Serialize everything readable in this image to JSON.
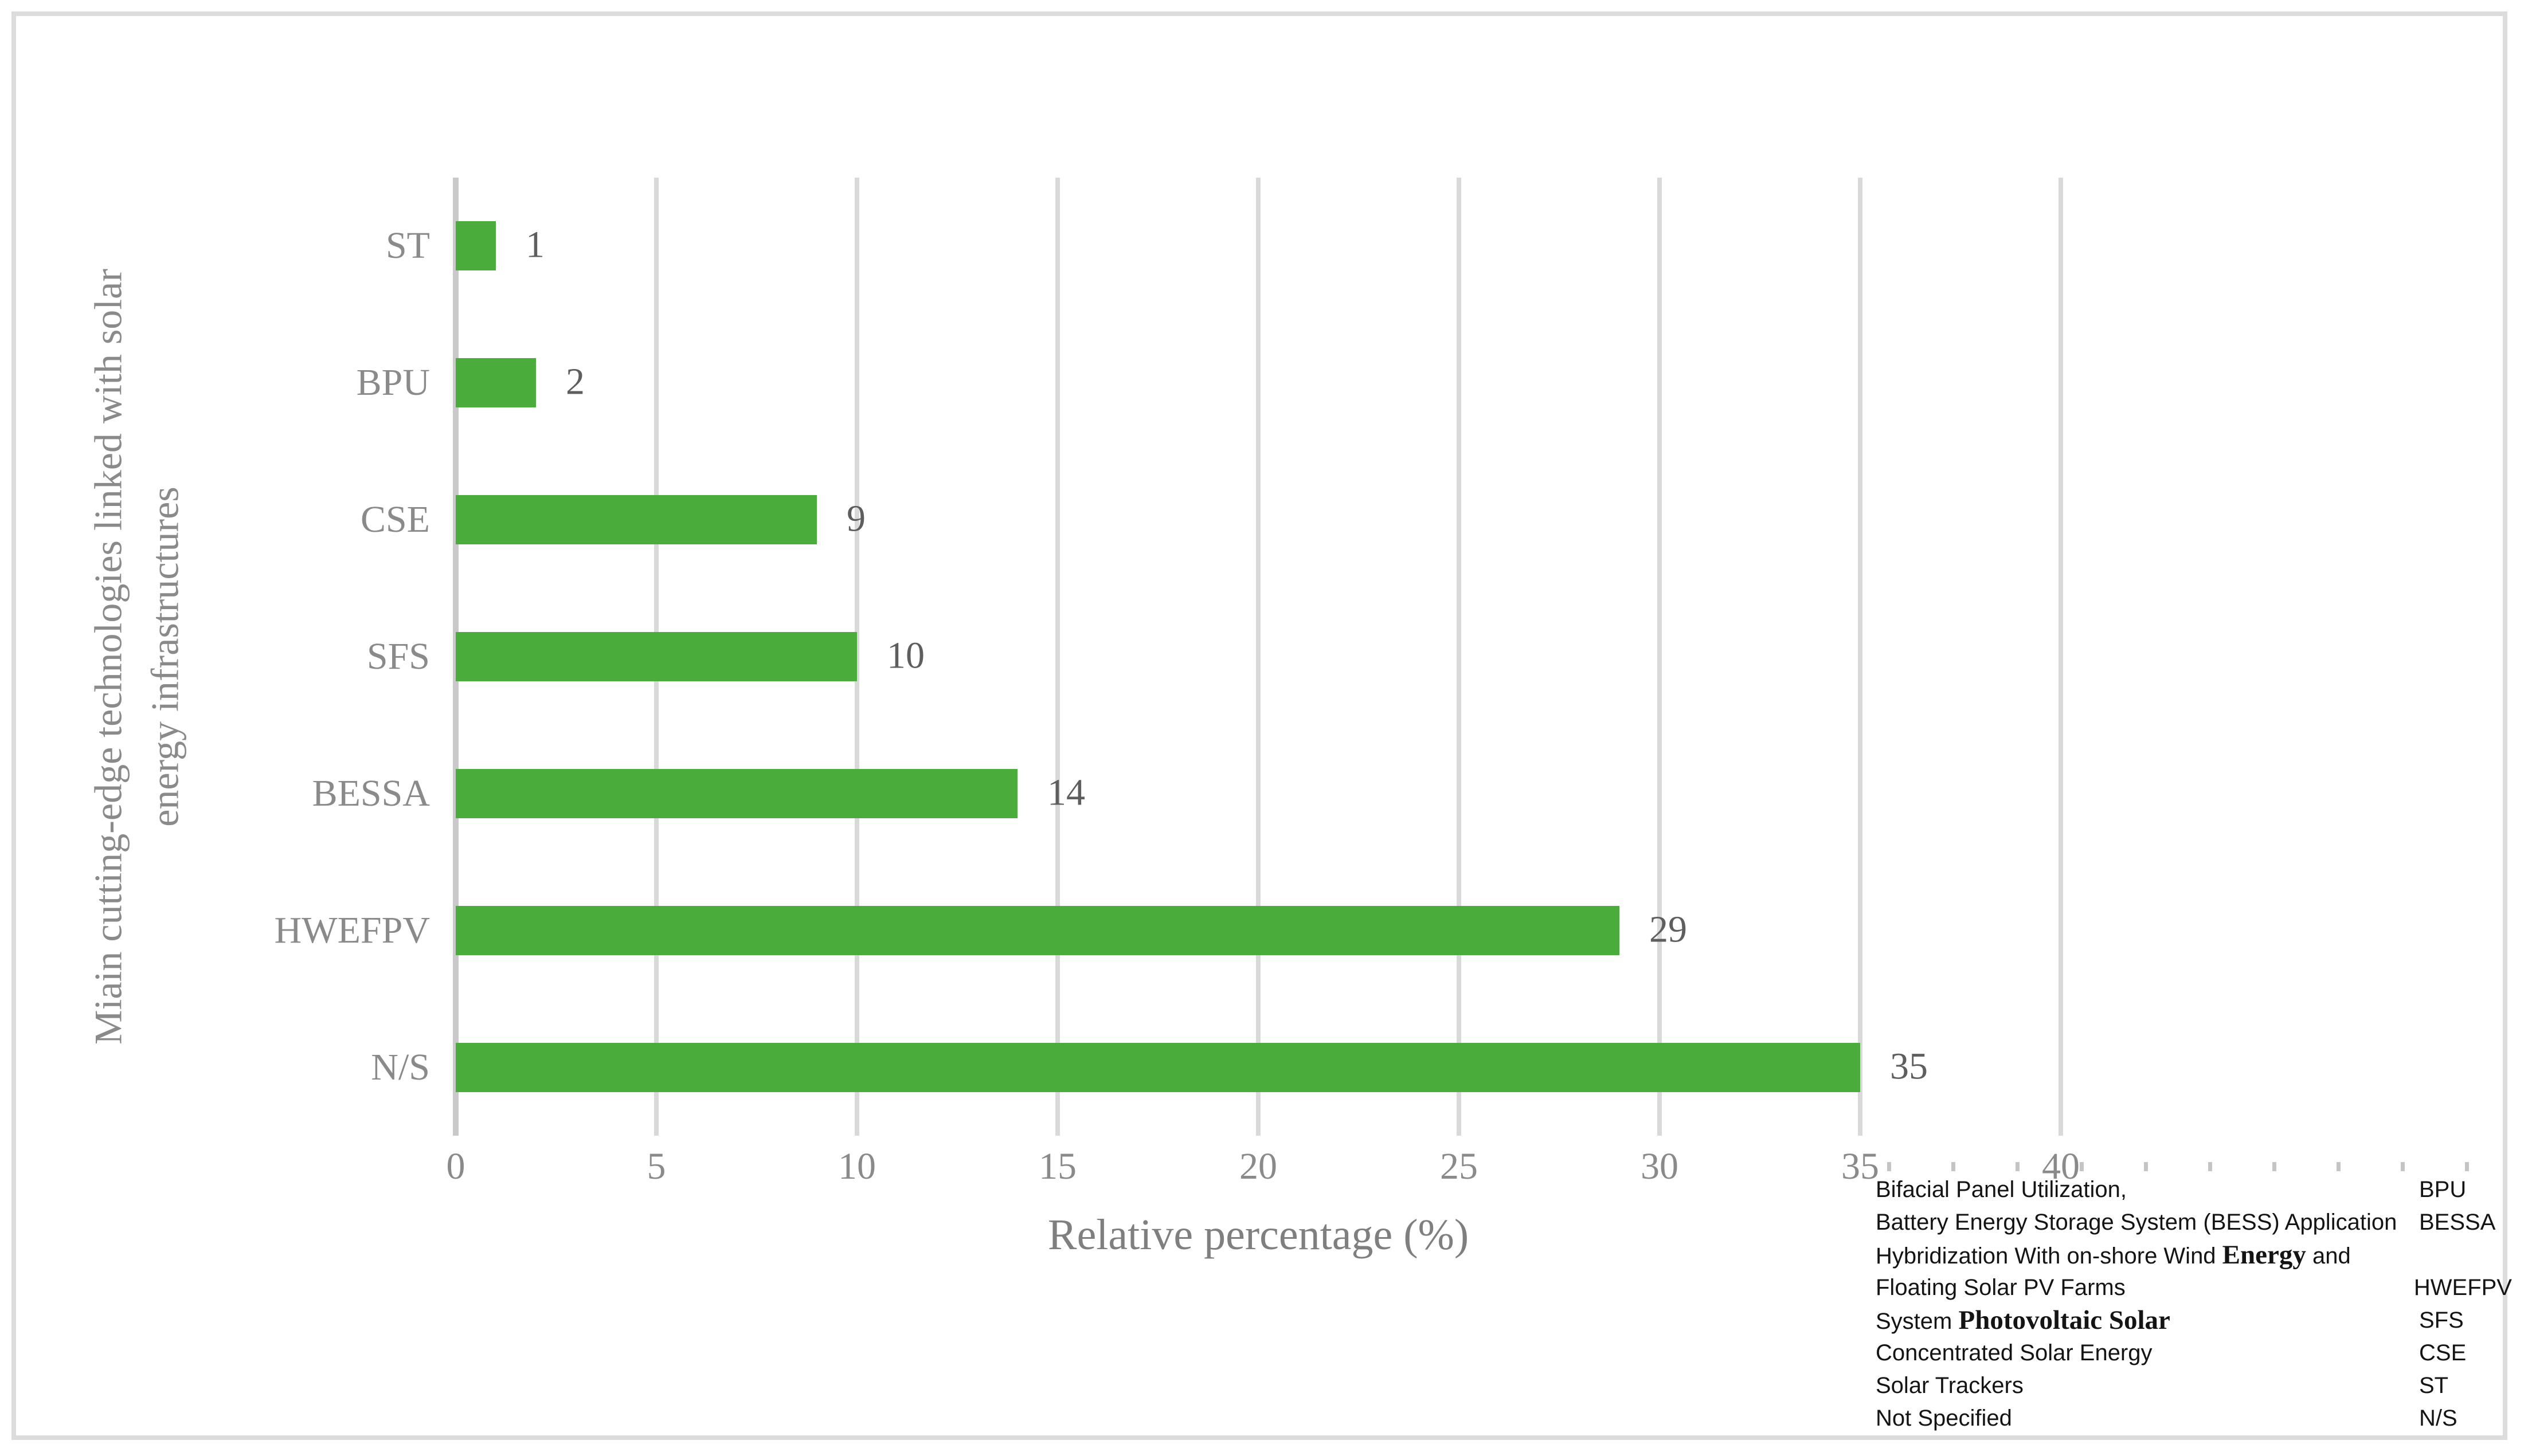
{
  "chart_data": {
    "type": "bar",
    "orientation": "horizontal",
    "title": "",
    "categories": [
      "ST",
      "BPU",
      "CSE",
      "SFS",
      "BESSA",
      "HWEFPV",
      "N/S"
    ],
    "values": [
      1,
      2,
      9,
      10,
      14,
      29,
      35
    ],
    "xlabel": "Relative percentage (%)",
    "ylabel_lines": [
      "Miain cutting-edge technologies linked with solar",
      "energy infrastructures"
    ],
    "xlim": [
      0,
      40
    ],
    "xticks": [
      0,
      5,
      10,
      15,
      20,
      25,
      30,
      35,
      40
    ],
    "grid": true,
    "value_labels": [
      1,
      2,
      9,
      10,
      14,
      29,
      35
    ],
    "legend_position": "bottom-right",
    "bar_color": "#4aad3b",
    "gridline_color": "#d9d9d9",
    "axis_line_color": "#c9c9c9",
    "tick_label_color": "#8a8a8a",
    "value_label_color": "#5e5e5e",
    "axis_title_color": "#7f7f7f"
  },
  "legend": {
    "rows": [
      {
        "pre": "Bifacial Panel Utilization,",
        "em": "",
        "post": "",
        "abbr": "BPU"
      },
      {
        "pre": "Battery Energy Storage System (BESS) Application",
        "em": "",
        "post": "",
        "abbr": "BESSA"
      },
      {
        "pre": "Hybridization With on-shore Wind ",
        "em": "Energy",
        "post": " and",
        "abbr": ""
      },
      {
        "pre": "Floating Solar PV Farms",
        "em": "",
        "post": "",
        "abbr": "HWEFPV"
      },
      {
        "pre": "System ",
        "em": "Photovoltaic Solar",
        "post": "",
        "abbr": "SFS"
      },
      {
        "pre": "Concentrated Solar Energy",
        "em": "",
        "post": "",
        "abbr": "CSE"
      },
      {
        "pre": "Solar Trackers",
        "em": "",
        "post": "",
        "abbr": "ST"
      },
      {
        "pre": "Not Specified",
        "em": "",
        "post": "",
        "abbr": "N/S"
      }
    ]
  }
}
